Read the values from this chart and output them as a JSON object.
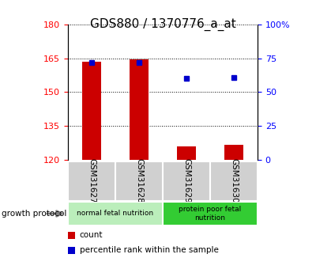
{
  "title": "GDS880 / 1370776_a_at",
  "samples": [
    "GSM31627",
    "GSM31628",
    "GSM31629",
    "GSM31630"
  ],
  "count_values": [
    163.5,
    164.5,
    126.0,
    126.5
  ],
  "percentile_values": [
    72,
    72,
    60,
    61
  ],
  "ylim_left": [
    120,
    180
  ],
  "ylim_right": [
    0,
    100
  ],
  "yticks_left": [
    120,
    135,
    150,
    165,
    180
  ],
  "yticks_right": [
    0,
    25,
    50,
    75,
    100
  ],
  "ytick_labels_right": [
    "0",
    "25",
    "50",
    "75",
    "100%"
  ],
  "bar_color": "#cc0000",
  "dot_color": "#0000cc",
  "groups": [
    {
      "label": "normal fetal nutrition",
      "indices": [
        0,
        1
      ],
      "color": "#bbeebb"
    },
    {
      "label": "protein poor fetal\nnutrition",
      "indices": [
        2,
        3
      ],
      "color": "#33cc33"
    }
  ],
  "group_label": "growth protocol",
  "legend_items": [
    {
      "label": "count",
      "color": "#cc0000"
    },
    {
      "label": "percentile rank within the sample",
      "color": "#0000cc"
    }
  ],
  "title_fontsize": 11,
  "tick_fontsize": 8,
  "bar_width": 0.4,
  "bg_color": "#ffffff",
  "plot_bg": "#ffffff",
  "gray_box": "#d0d0d0"
}
